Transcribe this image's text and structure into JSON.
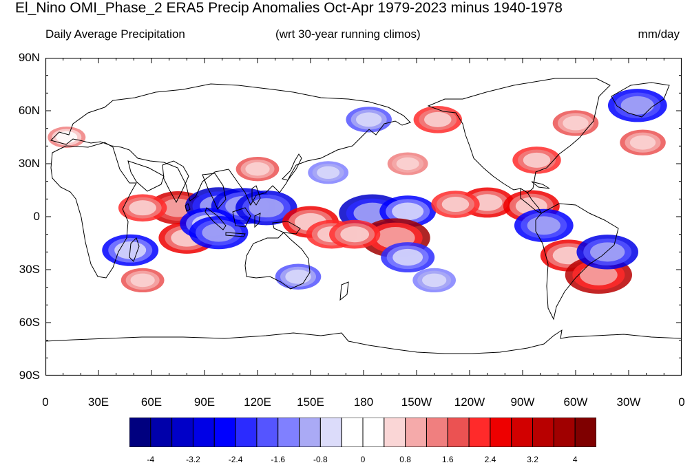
{
  "title": "El_Nino OMI_Phase_2 ERA5 Precip Anomalies Oct-Apr 1979-2023 minus 1940-1978",
  "subtitle_left": "Daily Average Precipitation",
  "subtitle_center": "(wrt 30-year running climos)",
  "subtitle_right": "mm/day",
  "map": {
    "projection": "cylindrical equidistant",
    "lon_range": [
      0,
      360
    ],
    "lat_range": [
      -90,
      90
    ],
    "lat_ticks": [
      {
        "lat": 90,
        "label": "90N"
      },
      {
        "lat": 60,
        "label": "60N"
      },
      {
        "lat": 30,
        "label": "30N"
      },
      {
        "lat": 0,
        "label": "0"
      },
      {
        "lat": -30,
        "label": "30S"
      },
      {
        "lat": -60,
        "label": "60S"
      },
      {
        "lat": -90,
        "label": "90S"
      }
    ],
    "lon_ticks": [
      {
        "lon": 0,
        "label": "0"
      },
      {
        "lon": 30,
        "label": "30E"
      },
      {
        "lon": 60,
        "label": "60E"
      },
      {
        "lon": 90,
        "label": "90E"
      },
      {
        "lon": 120,
        "label": "120E"
      },
      {
        "lon": 150,
        "label": "150E"
      },
      {
        "lon": 180,
        "label": "180"
      },
      {
        "lon": 210,
        "label": "150W"
      },
      {
        "lon": 240,
        "label": "120W"
      },
      {
        "lon": 270,
        "label": "90W"
      },
      {
        "lon": 300,
        "label": "60W"
      },
      {
        "lon": 330,
        "label": "30W"
      },
      {
        "lon": 360,
        "label": "0"
      }
    ],
    "anomalies": [
      {
        "lon": 75,
        "lat": 5,
        "value": 2.8
      },
      {
        "lon": 55,
        "lat": 5,
        "value": 2.0
      },
      {
        "lon": 80,
        "lat": -12,
        "value": 2.6
      },
      {
        "lon": 98,
        "lat": 6,
        "value": -3.4
      },
      {
        "lon": 112,
        "lat": 6,
        "value": -3.2
      },
      {
        "lon": 125,
        "lat": 5,
        "value": -3.0
      },
      {
        "lon": 92,
        "lat": -4,
        "value": -2.6
      },
      {
        "lon": 98,
        "lat": -9,
        "value": -2.8
      },
      {
        "lon": 150,
        "lat": -3,
        "value": 2.6
      },
      {
        "lon": 162,
        "lat": -10,
        "value": 2.2
      },
      {
        "lon": 185,
        "lat": 2,
        "value": -3.4
      },
      {
        "lon": 205,
        "lat": 3,
        "value": -2.6
      },
      {
        "lon": 198,
        "lat": -12,
        "value": 3.6
      },
      {
        "lon": 175,
        "lat": -10,
        "value": 2.2
      },
      {
        "lon": 205,
        "lat": -23,
        "value": -2.4
      },
      {
        "lon": 220,
        "lat": -36,
        "value": -1.6
      },
      {
        "lon": 250,
        "lat": 8,
        "value": 2.4
      },
      {
        "lon": 232,
        "lat": 7,
        "value": 2.0
      },
      {
        "lon": 275,
        "lat": 6,
        "value": 2.6
      },
      {
        "lon": 282,
        "lat": -5,
        "value": -2.8
      },
      {
        "lon": 296,
        "lat": -22,
        "value": 2.6
      },
      {
        "lon": 313,
        "lat": -33,
        "value": 3.4
      },
      {
        "lon": 318,
        "lat": -20,
        "value": -3.0
      },
      {
        "lon": 335,
        "lat": 63,
        "value": -2.8
      },
      {
        "lon": 300,
        "lat": 53,
        "value": 1.8
      },
      {
        "lon": 278,
        "lat": 32,
        "value": 2.0
      },
      {
        "lon": 55,
        "lat": -36,
        "value": 1.6
      },
      {
        "lon": 48,
        "lat": -19,
        "value": -2.6
      },
      {
        "lon": 120,
        "lat": 27,
        "value": 1.6
      },
      {
        "lon": 183,
        "lat": 55,
        "value": -1.8
      },
      {
        "lon": 222,
        "lat": 55,
        "value": 2.0
      },
      {
        "lon": 205,
        "lat": 30,
        "value": 1.4
      },
      {
        "lon": 143,
        "lat": -34,
        "value": -1.8
      },
      {
        "lon": 160,
        "lat": 25,
        "value": -1.4
      },
      {
        "lon": 12,
        "lat": 45,
        "value": 1.2
      },
      {
        "lon": 338,
        "lat": 42,
        "value": 1.8
      }
    ]
  },
  "colorbar": {
    "colors": [
      "#00007f",
      "#0000aa",
      "#0000c8",
      "#0000e6",
      "#0000ff",
      "#2b2bff",
      "#5555ff",
      "#8080ff",
      "#aaaaf5",
      "#dcdcfa",
      "#ffffff",
      "#ffffff",
      "#fad6d6",
      "#f5aaaa",
      "#f07f7f",
      "#eb5252",
      "#ff2a2a",
      "#ee0000",
      "#d20000",
      "#b80000",
      "#a00000",
      "#7f0000"
    ],
    "labels": [
      "-4",
      "-3.2",
      "-2.4",
      "-1.6",
      "-0.8",
      "0",
      "0.8",
      "1.6",
      "2.4",
      "3.2",
      "4"
    ]
  }
}
